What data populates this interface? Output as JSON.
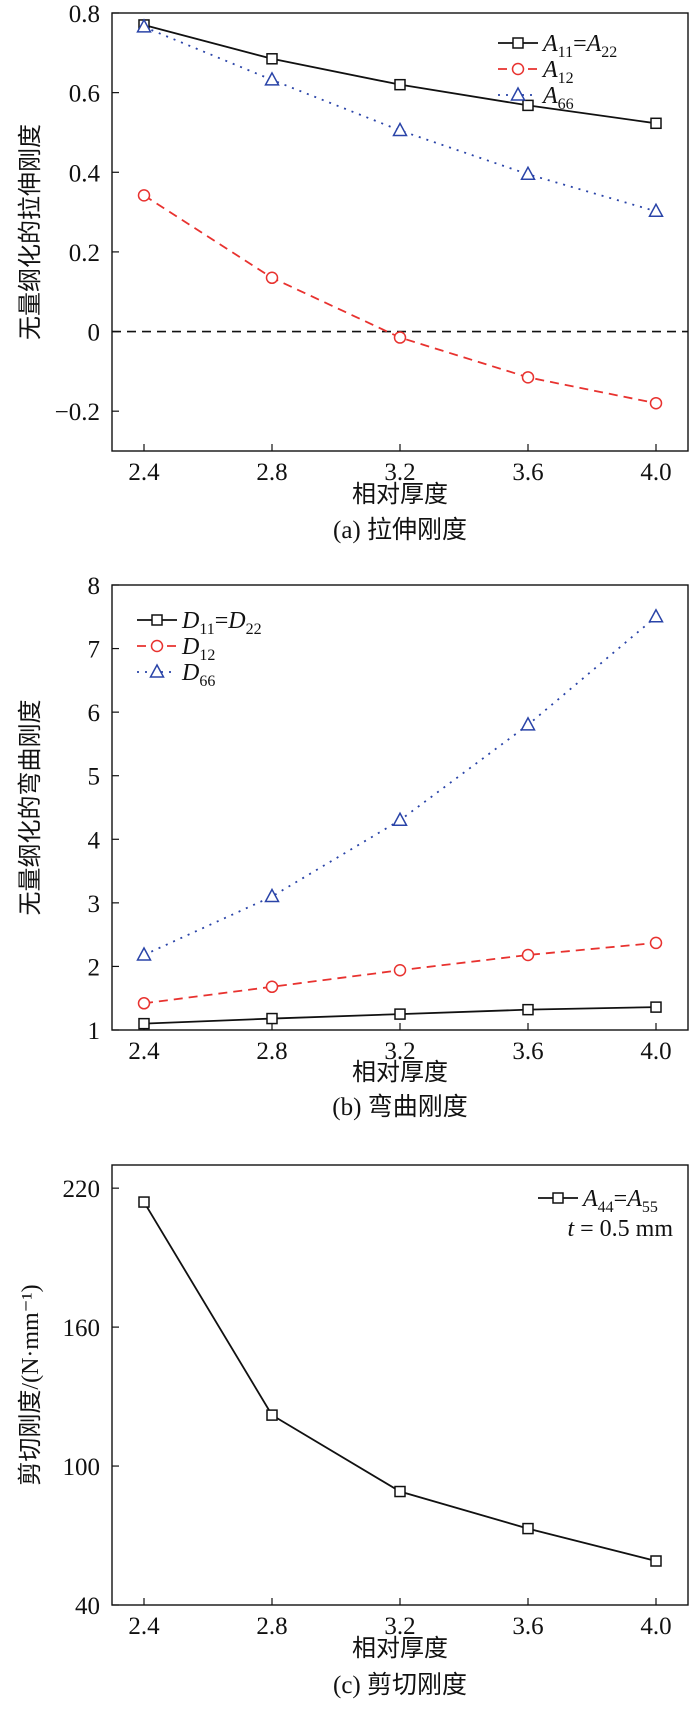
{
  "chart_data": [
    {
      "type": "line",
      "caption": "(a) 拉伸刚度",
      "xlabel": "相对厚度",
      "ylabel": "无量纲化的拉伸刚度",
      "xlim": [
        2.3,
        4.1
      ],
      "ylim": [
        -0.3,
        0.8
      ],
      "xticks": [
        2.4,
        2.8,
        3.2,
        3.6,
        4.0
      ],
      "xtick_labels": [
        "2.4",
        "2.8",
        "3.2",
        "3.6",
        "4.0"
      ],
      "yticks": [
        -0.2,
        0,
        0.2,
        0.4,
        0.6,
        0.8
      ],
      "ytick_labels": [
        "−0.2",
        "0",
        "0.2",
        "0.4",
        "0.6",
        "0.8"
      ],
      "reference_line": {
        "y": 0,
        "style": "dashed"
      },
      "legend_position": "top-right",
      "x": [
        2.4,
        2.8,
        3.2,
        3.6,
        4.0
      ],
      "series": [
        {
          "name": "A11=A22",
          "label_main": "A",
          "sub1": "11",
          "eq": "=",
          "label_main2": "A",
          "sub2": "22",
          "values": [
            0.77,
            0.685,
            0.62,
            0.568,
            0.523
          ],
          "color": "#111111",
          "dash": "solid",
          "marker": "square"
        },
        {
          "name": "A12",
          "label_main": "A",
          "sub1": "12",
          "values": [
            0.342,
            0.135,
            -0.015,
            -0.115,
            -0.18
          ],
          "color": "#e8322f",
          "dash": "dashed",
          "marker": "circle"
        },
        {
          "name": "A66",
          "label_main": "A",
          "sub1": "66",
          "values": [
            0.765,
            0.632,
            0.505,
            0.395,
            0.302
          ],
          "color": "#2a44a8",
          "dash": "dotted",
          "marker": "triangle"
        }
      ]
    },
    {
      "type": "line",
      "caption": "(b) 弯曲刚度",
      "xlabel": "相对厚度",
      "ylabel": "无量纲化的弯曲刚度",
      "xlim": [
        2.3,
        4.1
      ],
      "ylim": [
        1,
        8
      ],
      "xticks": [
        2.4,
        2.8,
        3.2,
        3.6,
        4.0
      ],
      "xtick_labels": [
        "2.4",
        "2.8",
        "3.2",
        "3.6",
        "4.0"
      ],
      "yticks": [
        1,
        2,
        3,
        4,
        5,
        6,
        7,
        8
      ],
      "ytick_labels": [
        "1",
        "2",
        "3",
        "4",
        "5",
        "6",
        "7",
        "8"
      ],
      "legend_position": "top-left",
      "x": [
        2.4,
        2.8,
        3.2,
        3.6,
        4.0
      ],
      "series": [
        {
          "name": "D11=D22",
          "label_main": "D",
          "sub1": "11",
          "eq": "=",
          "label_main2": "D",
          "sub2": "22",
          "values": [
            1.1,
            1.18,
            1.25,
            1.32,
            1.36
          ],
          "color": "#111111",
          "dash": "solid",
          "marker": "square"
        },
        {
          "name": "D12",
          "label_main": "D",
          "sub1": "12",
          "values": [
            1.42,
            1.68,
            1.94,
            2.18,
            2.37
          ],
          "color": "#e8322f",
          "dash": "dashed",
          "marker": "circle"
        },
        {
          "name": "D66",
          "label_main": "D",
          "sub1": "66",
          "values": [
            2.18,
            3.1,
            4.3,
            5.8,
            7.5
          ],
          "color": "#2a44a8",
          "dash": "dotted",
          "marker": "triangle"
        }
      ]
    },
    {
      "type": "line",
      "caption": "(c) 剪切刚度",
      "xlabel": "相对厚度",
      "ylabel": "剪切刚度/(N·mm⁻¹)",
      "xlim": [
        2.3,
        4.1
      ],
      "ylim": [
        40,
        230
      ],
      "xticks": [
        2.4,
        2.8,
        3.2,
        3.6,
        4.0
      ],
      "xtick_labels": [
        "2.4",
        "2.8",
        "3.2",
        "3.6",
        "4.0"
      ],
      "yticks": [
        40,
        100,
        160,
        220
      ],
      "ytick_labels": [
        "40",
        "100",
        "160",
        "220"
      ],
      "legend_position": "top-right",
      "annotation": "t = 0.5 mm",
      "annotation_var": "t",
      "annotation_rest": " = 0.5 mm",
      "x": [
        2.4,
        2.8,
        3.2,
        3.6,
        4.0
      ],
      "series": [
        {
          "name": "A44=A55",
          "label_main": "A",
          "sub1": "44",
          "eq": "=",
          "label_main2": "A",
          "sub2": "55",
          "values": [
            214,
            122,
            89,
            73,
            59
          ],
          "color": "#111111",
          "dash": "solid",
          "marker": "square"
        }
      ]
    }
  ]
}
